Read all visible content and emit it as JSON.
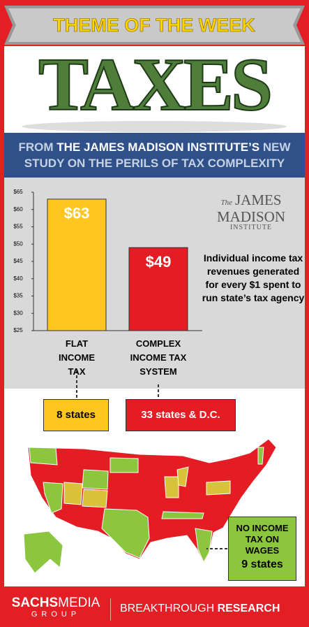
{
  "banner": {
    "title": "THEME OF THE WEEK"
  },
  "hero": "TAXES",
  "headline": {
    "parts": [
      "FROM ",
      "THE JAMES MADISON INSTITUTE’S",
      " NEW STUDY ON THE PERILS OF TAX COMPLEXITY"
    ]
  },
  "logo": {
    "small": "The",
    "line1": "JAMES",
    "line2": "MADISON",
    "line3": "INSTITUTE"
  },
  "chart_data": {
    "type": "bar",
    "description": "Individual income tax revenues generated for every $1 spent to run state’s tax agency",
    "categories": [
      "FLAT INCOME TAX",
      "COMPLEX INCOME TAX SYSTEM"
    ],
    "values": [
      63,
      49
    ],
    "value_labels": [
      "$63",
      "$49"
    ],
    "colors": [
      "#ffc620",
      "#e41d25"
    ],
    "ylim": [
      25,
      65
    ],
    "yticks": [
      {
        "value": 25,
        "label": "$25"
      },
      {
        "value": 30,
        "label": "$30"
      },
      {
        "value": 35,
        "label": "$35"
      },
      {
        "value": 40,
        "label": "$40"
      },
      {
        "value": 45,
        "label": "$45"
      },
      {
        "value": 50,
        "label": "$50"
      },
      {
        "value": 55,
        "label": "$55"
      },
      {
        "value": 60,
        "label": "$60"
      },
      {
        "value": 65,
        "label": "$65"
      }
    ]
  },
  "groups": [
    "8 states",
    "33 states & D.C."
  ],
  "no_tax": {
    "line1": "NO INCOME",
    "line2": "TAX ON",
    "line3": "WAGES",
    "count": "9 states"
  },
  "footer": {
    "brand_bold": "SACHS",
    "brand_light": "MEDIA",
    "brand_sub": "GROUP",
    "tag_light": "BREAKTHROUGH ",
    "tag_bold": "RESEARCH"
  }
}
